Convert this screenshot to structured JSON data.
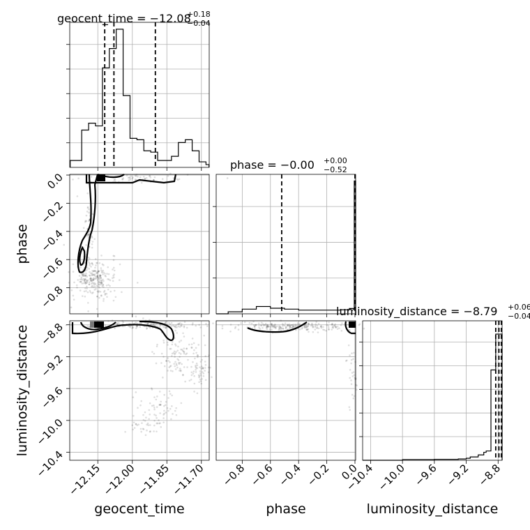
{
  "chart_data": {
    "type": "corner",
    "parameters": [
      "geocent_time",
      "phase",
      "luminosity_distance"
    ],
    "axis_labels": {
      "geocent_time": "geocent_time",
      "phase": "phase",
      "luminosity_distance": "luminosity_distance"
    },
    "ranges": {
      "geocent_time": [
        -12.272,
        -11.666
      ],
      "phase": [
        -0.985,
        0.005
      ],
      "luminosity_distance": [
        -10.5,
        -8.75
      ]
    },
    "ticks": {
      "geocent_time": [
        "−12.15",
        "−12.00",
        "−11.85",
        "−11.70"
      ],
      "phase": [
        "−0.8",
        "−0.6",
        "−0.4",
        "−0.2",
        "0.0"
      ],
      "luminosity_distance": [
        "−10.4",
        "−10.0",
        "−9.6",
        "−9.2",
        "−8.8"
      ]
    },
    "tick_values": {
      "geocent_time": [
        -12.15,
        -12.0,
        -11.85,
        -11.7
      ],
      "phase": [
        -0.8,
        -0.6,
        -0.4,
        -0.2,
        0.0
      ],
      "luminosity_distance": [
        -10.4,
        -10.0,
        -9.6,
        -9.2,
        -8.8
      ]
    },
    "titles": {
      "geocent_time": {
        "main": "geocent_time = −12.08",
        "sup": "+0.18",
        "sub": "−0.04"
      },
      "phase": {
        "main": "phase = −0.00",
        "sup": "+0.00",
        "sub": "−0.52"
      },
      "luminosity_distance": {
        "main": "luminosity_distance = −8.79",
        "sup": "+0.06",
        "sub": "−0.04"
      }
    },
    "quantiles": {
      "geocent_time": [
        -12.12,
        -12.08,
        -11.9
      ],
      "phase": [
        -0.52,
        0.0
      ],
      "luminosity_distance": [
        -8.83,
        -8.79,
        -8.73
      ]
    },
    "histograms": {
      "geocent_time": {
        "edges": [
          -12.27,
          -12.25,
          -12.22,
          -12.19,
          -12.16,
          -12.13,
          -12.1,
          -12.07,
          -12.04,
          -12.01,
          -11.98,
          -11.95,
          -11.92,
          -11.89,
          -11.86,
          -11.83,
          -11.8,
          -11.77,
          -11.74,
          -11.71,
          -11.68,
          -11.667
        ],
        "counts": [
          0.05,
          0.05,
          0.27,
          0.32,
          0.3,
          0.72,
          0.86,
          1.0,
          0.52,
          0.21,
          0.2,
          0.12,
          0.11,
          0.05,
          0.05,
          0.08,
          0.18,
          0.2,
          0.12,
          0.04,
          0.02
        ],
        "ylim": [
          0,
          1.05
        ]
      },
      "phase": {
        "edges": [
          -0.985,
          -0.9,
          -0.8,
          -0.7,
          -0.6,
          -0.5,
          -0.4,
          -0.3,
          -0.2,
          -0.1,
          -0.04,
          -0.005,
          0.005
        ],
        "counts": [
          0.0,
          0.015,
          0.035,
          0.055,
          0.042,
          0.035,
          0.028,
          0.028,
          0.028,
          0.03,
          0.04,
          1.0
        ],
        "ylim": [
          0,
          1.05
        ]
      },
      "luminosity_distance": {
        "edges": [
          -10.5,
          -10.0,
          -9.8,
          -9.6,
          -9.3,
          -9.2,
          -9.15,
          -9.05,
          -8.98,
          -8.95,
          -8.89,
          -8.83,
          -8.75
        ],
        "counts": [
          0.0,
          0.005,
          0.005,
          0.007,
          0.01,
          0.015,
          0.025,
          0.04,
          0.06,
          0.07,
          0.68,
          0.95
        ],
        "ylim": [
          0,
          1.05
        ]
      }
    },
    "density_peaks": [
      {
        "x_param": "geocent_time",
        "y_param": "phase",
        "x": -12.1,
        "y": -0.005,
        "level": 1.0
      },
      {
        "x_param": "geocent_time",
        "y_param": "luminosity_distance",
        "x": -12.1,
        "y": -8.8,
        "level": 1.0
      },
      {
        "x_param": "phase",
        "y_param": "luminosity_distance",
        "x": -0.005,
        "y": -8.8,
        "level": 1.0
      }
    ],
    "grid": true
  }
}
